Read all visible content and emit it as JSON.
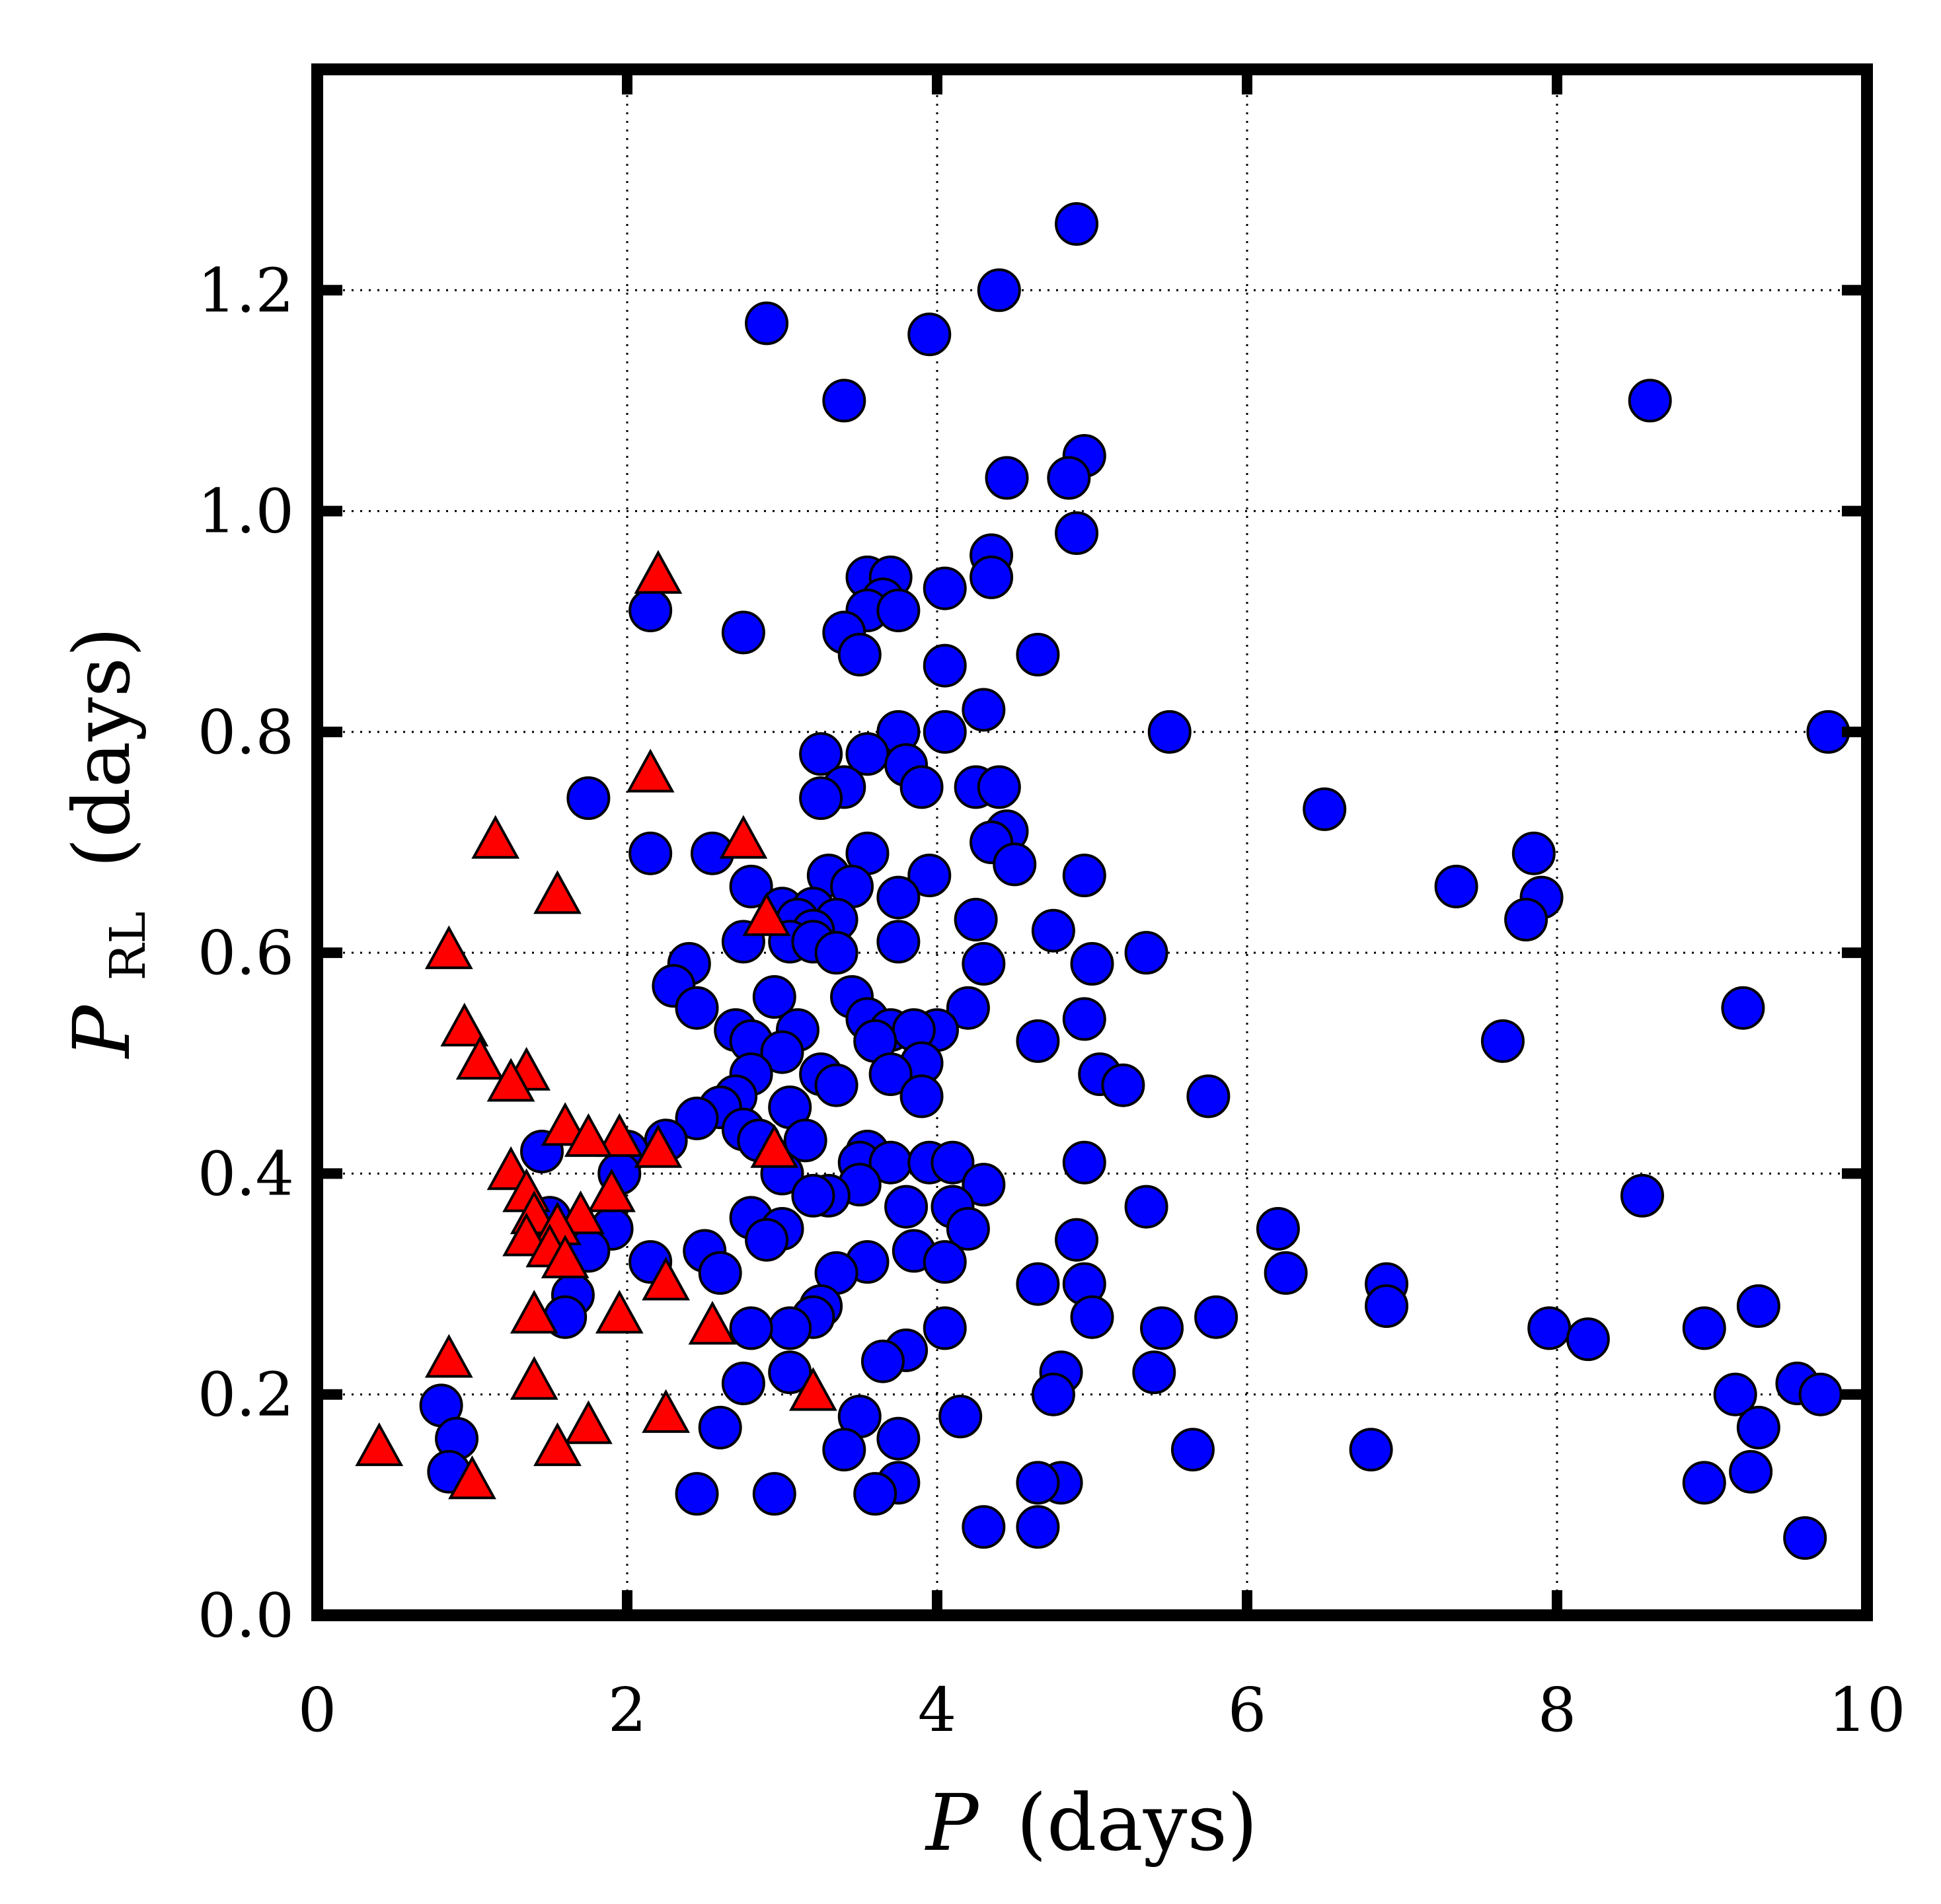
{
  "chart_data": {
    "type": "scatter",
    "xlabel": {
      "symbol": "P",
      "units": "(days)"
    },
    "ylabel": {
      "symbol": "P",
      "subscript": "RL",
      "units": "(days)"
    },
    "xlim": [
      0,
      10
    ],
    "ylim": [
      0,
      1.4
    ],
    "xticks": [
      0,
      2,
      4,
      6,
      8,
      10
    ],
    "xtick_labels": [
      "0",
      "2",
      "4",
      "6",
      "8",
      "10"
    ],
    "yticks": [
      0.0,
      0.2,
      0.4,
      0.6,
      0.8,
      1.0,
      1.2
    ],
    "ytick_labels": [
      "0.0",
      "0.2",
      "0.4",
      "0.6",
      "0.8",
      "1.0",
      "1.2"
    ],
    "grid": true,
    "legend": "none",
    "series": [
      {
        "name": "circles",
        "marker": "circle",
        "color": "#0000ff",
        "edgecolor": "#000000",
        "points": [
          [
            4.9,
            1.26
          ],
          [
            4.4,
            1.2
          ],
          [
            2.9,
            1.17
          ],
          [
            3.95,
            1.16
          ],
          [
            3.4,
            1.1
          ],
          [
            8.6,
            1.1
          ],
          [
            4.95,
            1.05
          ],
          [
            4.45,
            1.03
          ],
          [
            4.85,
            1.03
          ],
          [
            4.9,
            0.98
          ],
          [
            4.35,
            0.96
          ],
          [
            3.55,
            0.94
          ],
          [
            3.7,
            0.94
          ],
          [
            4.35,
            0.94
          ],
          [
            3.65,
            0.92
          ],
          [
            4.05,
            0.93
          ],
          [
            3.55,
            0.91
          ],
          [
            3.75,
            0.91
          ],
          [
            2.15,
            0.91
          ],
          [
            2.75,
            0.89
          ],
          [
            3.4,
            0.89
          ],
          [
            3.5,
            0.87
          ],
          [
            4.65,
            0.87
          ],
          [
            4.05,
            0.86
          ],
          [
            4.3,
            0.82
          ],
          [
            3.75,
            0.8
          ],
          [
            4.05,
            0.8
          ],
          [
            5.5,
            0.8
          ],
          [
            9.75,
            0.8
          ],
          [
            3.25,
            0.78
          ],
          [
            3.55,
            0.78
          ],
          [
            3.8,
            0.77
          ],
          [
            3.4,
            0.75
          ],
          [
            4.25,
            0.75
          ],
          [
            4.4,
            0.75
          ],
          [
            3.9,
            0.75
          ],
          [
            3.25,
            0.74
          ],
          [
            1.75,
            0.74
          ],
          [
            6.5,
            0.73
          ],
          [
            4.45,
            0.71
          ],
          [
            4.35,
            0.7
          ],
          [
            2.15,
            0.69
          ],
          [
            2.55,
            0.69
          ],
          [
            3.55,
            0.69
          ],
          [
            7.85,
            0.69
          ],
          [
            4.5,
            0.68
          ],
          [
            3.95,
            0.67
          ],
          [
            3.3,
            0.67
          ],
          [
            4.95,
            0.67
          ],
          [
            3.45,
            0.66
          ],
          [
            2.8,
            0.66
          ],
          [
            7.35,
            0.66
          ],
          [
            3.75,
            0.65
          ],
          [
            7.9,
            0.65
          ],
          [
            3.0,
            0.64
          ],
          [
            3.2,
            0.64
          ],
          [
            3.35,
            0.63
          ],
          [
            3.1,
            0.63
          ],
          [
            4.25,
            0.63
          ],
          [
            7.8,
            0.63
          ],
          [
            3.2,
            0.62
          ],
          [
            2.75,
            0.61
          ],
          [
            3.05,
            0.61
          ],
          [
            3.2,
            0.61
          ],
          [
            4.75,
            0.62
          ],
          [
            3.75,
            0.61
          ],
          [
            3.35,
            0.6
          ],
          [
            4.3,
            0.59
          ],
          [
            5.0,
            0.59
          ],
          [
            5.35,
            0.6
          ],
          [
            2.4,
            0.59
          ],
          [
            2.3,
            0.57
          ],
          [
            2.95,
            0.56
          ],
          [
            3.45,
            0.56
          ],
          [
            9.2,
            0.55
          ],
          [
            4.2,
            0.55
          ],
          [
            2.45,
            0.55
          ],
          [
            3.55,
            0.54
          ],
          [
            3.7,
            0.53
          ],
          [
            4.0,
            0.53
          ],
          [
            2.7,
            0.53
          ],
          [
            3.1,
            0.53
          ],
          [
            3.85,
            0.53
          ],
          [
            4.95,
            0.54
          ],
          [
            4.65,
            0.52
          ],
          [
            7.65,
            0.52
          ],
          [
            2.8,
            0.52
          ],
          [
            3.6,
            0.52
          ],
          [
            3.0,
            0.51
          ],
          [
            3.9,
            0.5
          ],
          [
            3.25,
            0.49
          ],
          [
            3.7,
            0.49
          ],
          [
            2.8,
            0.49
          ],
          [
            5.05,
            0.49
          ],
          [
            3.35,
            0.48
          ],
          [
            5.2,
            0.48
          ],
          [
            3.9,
            0.47
          ],
          [
            5.75,
            0.47
          ],
          [
            3.05,
            0.46
          ],
          [
            2.7,
            0.47
          ],
          [
            2.6,
            0.46
          ],
          [
            2.45,
            0.45
          ],
          [
            2.75,
            0.44
          ],
          [
            3.15,
            0.43
          ],
          [
            2.25,
            0.43
          ],
          [
            2.85,
            0.43
          ],
          [
            3.55,
            0.42
          ],
          [
            3.5,
            0.41
          ],
          [
            3.7,
            0.41
          ],
          [
            3.95,
            0.41
          ],
          [
            4.1,
            0.41
          ],
          [
            4.95,
            0.41
          ],
          [
            2.0,
            0.42
          ],
          [
            1.45,
            0.42
          ],
          [
            3.0,
            0.4
          ],
          [
            3.5,
            0.39
          ],
          [
            4.3,
            0.39
          ],
          [
            1.95,
            0.4
          ],
          [
            3.3,
            0.38
          ],
          [
            3.8,
            0.37
          ],
          [
            4.1,
            0.37
          ],
          [
            5.35,
            0.37
          ],
          [
            3.2,
            0.38
          ],
          [
            8.55,
            0.38
          ],
          [
            2.8,
            0.36
          ],
          [
            3.0,
            0.35
          ],
          [
            4.2,
            0.35
          ],
          [
            6.2,
            0.35
          ],
          [
            1.9,
            0.35
          ],
          [
            1.5,
            0.36
          ],
          [
            4.9,
            0.34
          ],
          [
            2.9,
            0.34
          ],
          [
            3.85,
            0.33
          ],
          [
            2.5,
            0.33
          ],
          [
            1.75,
            0.33
          ],
          [
            2.15,
            0.32
          ],
          [
            3.55,
            0.32
          ],
          [
            4.05,
            0.32
          ],
          [
            6.25,
            0.31
          ],
          [
            3.35,
            0.31
          ],
          [
            2.6,
            0.31
          ],
          [
            6.9,
            0.3
          ],
          [
            4.95,
            0.3
          ],
          [
            4.65,
            0.3
          ],
          [
            3.25,
            0.28
          ],
          [
            1.65,
            0.29
          ],
          [
            6.9,
            0.28
          ],
          [
            5.8,
            0.27
          ],
          [
            5.0,
            0.27
          ],
          [
            3.2,
            0.27
          ],
          [
            1.6,
            0.27
          ],
          [
            3.05,
            0.26
          ],
          [
            4.05,
            0.26
          ],
          [
            5.45,
            0.26
          ],
          [
            2.8,
            0.26
          ],
          [
            8.95,
            0.26
          ],
          [
            7.95,
            0.26
          ],
          [
            8.2,
            0.25
          ],
          [
            9.3,
            0.28
          ],
          [
            3.8,
            0.24
          ],
          [
            3.65,
            0.23
          ],
          [
            3.05,
            0.22
          ],
          [
            4.8,
            0.22
          ],
          [
            5.4,
            0.22
          ],
          [
            2.75,
            0.21
          ],
          [
            9.55,
            0.21
          ],
          [
            9.7,
            0.2
          ],
          [
            9.15,
            0.2
          ],
          [
            4.75,
            0.2
          ],
          [
            0.8,
            0.19
          ],
          [
            4.15,
            0.18
          ],
          [
            3.5,
            0.18
          ],
          [
            2.6,
            0.17
          ],
          [
            9.3,
            0.17
          ],
          [
            0.9,
            0.16
          ],
          [
            3.75,
            0.16
          ],
          [
            3.4,
            0.15
          ],
          [
            5.65,
            0.15
          ],
          [
            6.8,
            0.15
          ],
          [
            0.85,
            0.13
          ],
          [
            9.25,
            0.13
          ],
          [
            3.75,
            0.12
          ],
          [
            4.8,
            0.12
          ],
          [
            4.65,
            0.12
          ],
          [
            8.95,
            0.12
          ],
          [
            2.45,
            0.11
          ],
          [
            3.6,
            0.11
          ],
          [
            2.95,
            0.11
          ],
          [
            4.3,
            0.08
          ],
          [
            4.65,
            0.08
          ],
          [
            9.6,
            0.07
          ]
        ]
      },
      {
        "name": "triangles",
        "marker": "triangle",
        "color": "#ff0000",
        "edgecolor": "#000000",
        "points": [
          [
            2.2,
            0.94
          ],
          [
            2.15,
            0.76
          ],
          [
            1.15,
            0.7
          ],
          [
            2.75,
            0.7
          ],
          [
            1.55,
            0.65
          ],
          [
            2.9,
            0.63
          ],
          [
            0.85,
            0.6
          ],
          [
            0.95,
            0.53
          ],
          [
            1.05,
            0.5
          ],
          [
            1.35,
            0.49
          ],
          [
            1.25,
            0.48
          ],
          [
            1.6,
            0.44
          ],
          [
            1.95,
            0.43
          ],
          [
            1.75,
            0.43
          ],
          [
            2.2,
            0.42
          ],
          [
            2.95,
            0.42
          ],
          [
            1.25,
            0.4
          ],
          [
            1.35,
            0.38
          ],
          [
            1.9,
            0.38
          ],
          [
            1.4,
            0.36
          ],
          [
            1.7,
            0.36
          ],
          [
            1.55,
            0.35
          ],
          [
            1.35,
            0.34
          ],
          [
            1.5,
            0.33
          ],
          [
            1.6,
            0.32
          ],
          [
            2.25,
            0.3
          ],
          [
            1.4,
            0.27
          ],
          [
            1.95,
            0.27
          ],
          [
            2.55,
            0.26
          ],
          [
            0.85,
            0.23
          ],
          [
            1.4,
            0.21
          ],
          [
            3.2,
            0.2
          ],
          [
            2.25,
            0.18
          ],
          [
            1.75,
            0.17
          ],
          [
            1.55,
            0.15
          ],
          [
            0.4,
            0.15
          ],
          [
            1.0,
            0.12
          ]
        ]
      }
    ]
  }
}
